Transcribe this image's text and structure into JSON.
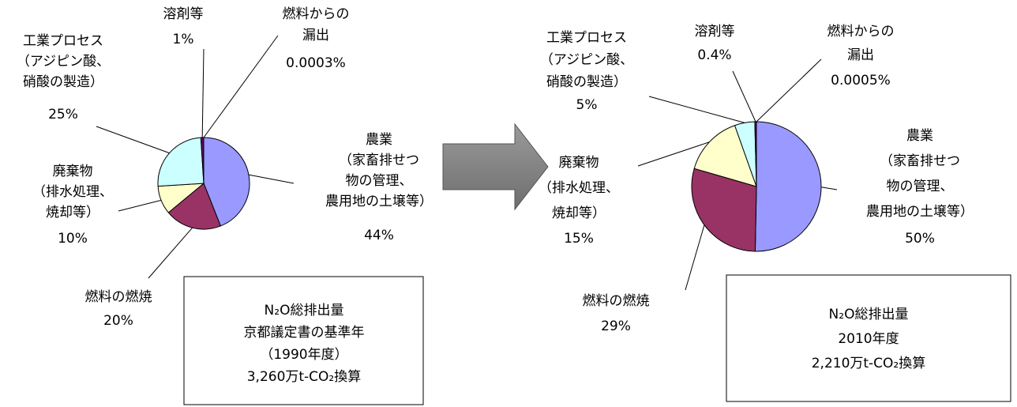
{
  "chart_data": [
    {
      "type": "pie",
      "categories": [
        [
          "農業",
          "（家畜排せつ",
          "物の管理、",
          "農用地の土壌等）"
        ],
        [
          "燃料の燃焼"
        ],
        [
          "廃棄物",
          "（排水処理、",
          "焼却等）"
        ],
        [
          "工業プロセス",
          "（アジピン酸、",
          "硝酸の製造）"
        ],
        [
          "溶剤等"
        ],
        [
          "燃料からの",
          "漏出"
        ]
      ],
      "values": [
        44,
        20,
        10,
        25,
        1,
        0.0003
      ],
      "value_labels": [
        "44%",
        "20%",
        "10%",
        "25%",
        "1%",
        "0.0003%"
      ],
      "colors": [
        "#9999ff",
        "#993366",
        "#ffffcc",
        "#ccffff",
        "#660066",
        "#ff8080"
      ],
      "note": [
        "N₂O総排出量",
        "京都議定書の基準年",
        "（1990年度）",
        "3,260万t-CO₂換算"
      ]
    },
    {
      "type": "pie",
      "categories": [
        [
          "農業",
          "（家畜排せつ",
          "物の管理、",
          "農用地の土壌等）"
        ],
        [
          "燃料の燃焼"
        ],
        [
          "廃棄物",
          "（排水処理、",
          "焼却等）"
        ],
        [
          "工業プロセス",
          "（アジピン酸、",
          "硝酸の製造）"
        ],
        [
          "溶剤等"
        ],
        [
          "燃料からの",
          "漏出"
        ]
      ],
      "values": [
        50,
        29,
        15,
        5,
        0.4,
        0.0005
      ],
      "value_labels": [
        "50%",
        "29%",
        "15%",
        "5%",
        "0.4%",
        "0.0005%"
      ],
      "colors": [
        "#9999ff",
        "#993366",
        "#ffffcc",
        "#ccffff",
        "#660066",
        "#ff8080"
      ],
      "note": [
        "N₂O総排出量",
        "2010年度",
        "2,210万t-CO₂換算"
      ]
    }
  ]
}
